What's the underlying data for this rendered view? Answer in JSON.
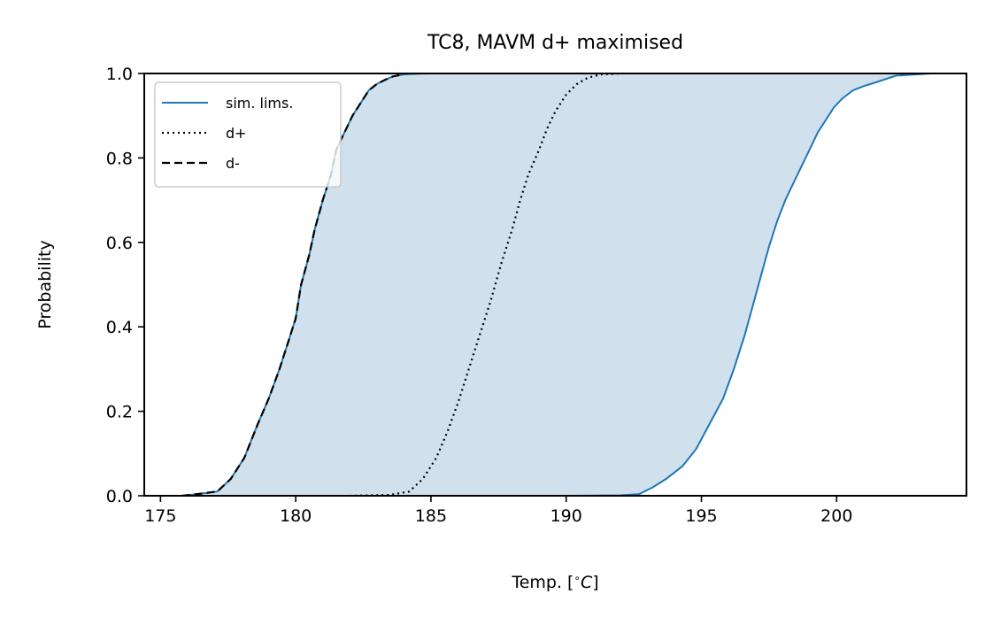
{
  "chart_data": {
    "type": "line",
    "title": "TC8, MAVM d+ maximised",
    "xlabel": "Temp. [∘C]",
    "xlabel_parts": {
      "prefix": "Temp. [",
      "degree": "∘",
      "unit": "C",
      "suffix": "]"
    },
    "ylabel": "Probability",
    "xlim": [
      174.4,
      204.8
    ],
    "ylim": [
      0.0,
      1.0
    ],
    "xticks": [
      175,
      180,
      185,
      190,
      195,
      200
    ],
    "xtick_labels": [
      "175",
      "180",
      "185",
      "190",
      "195",
      "200"
    ],
    "yticks": [
      0.0,
      0.2,
      0.4,
      0.6,
      0.8,
      1.0
    ],
    "ytick_labels": [
      "0.0",
      "0.2",
      "0.4",
      "0.6",
      "0.8",
      "1.0"
    ],
    "grid": false,
    "legend_position": "top-left",
    "fill": {
      "between": [
        "lower",
        "upper"
      ],
      "color": "#d0e1ed"
    },
    "series": [
      {
        "key": "upper",
        "name": "sim. lims.",
        "color": "#1f77b4",
        "style": "solid",
        "x": [
          175.8,
          176.5,
          177.1,
          177.6,
          178.1,
          178.6,
          179.0,
          179.4,
          179.7,
          180.0,
          180.2,
          180.5,
          180.7,
          181.0,
          181.3,
          181.5,
          181.8,
          182.1,
          182.4,
          182.7,
          183.0,
          183.3,
          183.6,
          184.0,
          184.5,
          185.0
        ],
        "y": [
          0.0,
          0.005,
          0.01,
          0.04,
          0.09,
          0.17,
          0.23,
          0.3,
          0.36,
          0.42,
          0.5,
          0.57,
          0.63,
          0.7,
          0.76,
          0.82,
          0.86,
          0.9,
          0.93,
          0.96,
          0.975,
          0.985,
          0.993,
          0.998,
          0.9995,
          1.0
        ]
      },
      {
        "key": "lower",
        "name": "",
        "color": "#1f77b4",
        "style": "solid",
        "x": [
          187.0,
          190.0,
          192.0,
          192.7,
          193.2,
          193.7,
          194.3,
          194.8,
          195.3,
          195.8,
          196.2,
          196.6,
          196.9,
          197.2,
          197.5,
          197.8,
          198.1,
          198.4,
          198.7,
          199.0,
          199.3,
          199.6,
          199.9,
          200.2,
          200.6,
          201.0,
          201.5,
          202.2,
          203.5
        ],
        "y": [
          0.0,
          0.0,
          0.001,
          0.004,
          0.02,
          0.04,
          0.07,
          0.11,
          0.17,
          0.23,
          0.3,
          0.38,
          0.45,
          0.52,
          0.59,
          0.65,
          0.7,
          0.74,
          0.78,
          0.82,
          0.86,
          0.89,
          0.92,
          0.94,
          0.96,
          0.97,
          0.98,
          0.995,
          1.0
        ]
      },
      {
        "key": "dplus",
        "name": "d+",
        "color": "#000000",
        "style": "dotted",
        "x": [
          182.0,
          183.5,
          184.2,
          184.7,
          185.2,
          185.6,
          186.0,
          186.4,
          186.8,
          187.2,
          187.6,
          188.0,
          188.3,
          188.6,
          189.0,
          189.3,
          189.6,
          190.0,
          190.4,
          190.8,
          191.3,
          192.0
        ],
        "y": [
          0.0,
          0.002,
          0.01,
          0.04,
          0.09,
          0.15,
          0.22,
          0.3,
          0.38,
          0.46,
          0.55,
          0.63,
          0.7,
          0.76,
          0.82,
          0.87,
          0.91,
          0.95,
          0.975,
          0.99,
          0.998,
          1.0
        ]
      },
      {
        "key": "dminus",
        "name": "d-",
        "color": "#000000",
        "style": "dashed",
        "x": [
          175.8,
          176.5,
          177.1,
          177.6,
          178.1,
          178.6,
          179.0,
          179.4,
          179.7,
          180.0,
          180.2,
          180.5,
          180.7,
          181.0,
          181.3,
          181.5,
          181.8,
          182.1,
          182.4,
          182.7,
          183.0,
          183.3,
          183.6,
          184.0
        ],
        "y": [
          0.0,
          0.005,
          0.01,
          0.04,
          0.09,
          0.17,
          0.23,
          0.3,
          0.36,
          0.42,
          0.5,
          0.57,
          0.63,
          0.7,
          0.76,
          0.82,
          0.86,
          0.9,
          0.93,
          0.96,
          0.975,
          0.985,
          0.993,
          0.998
        ]
      }
    ]
  }
}
